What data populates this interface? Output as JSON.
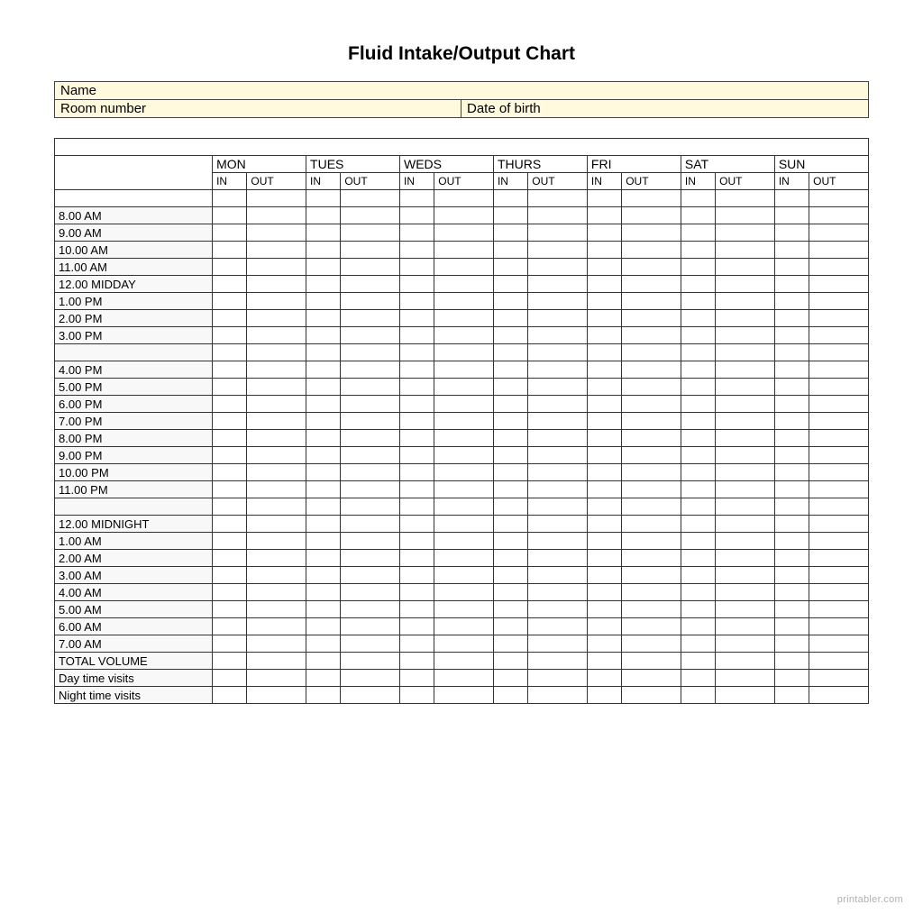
{
  "title": "Fluid Intake/Output Chart",
  "info": {
    "name_label": "Name",
    "room_label": "Room number",
    "dob_label": "Date of birth"
  },
  "days": [
    "MON",
    "TUES",
    "WEDS",
    "THURS",
    "FRI",
    "SAT",
    "SUN"
  ],
  "sub": {
    "in": "IN",
    "out": "OUT"
  },
  "times_block1": [
    "8.00 AM",
    "9.00 AM",
    "10.00 AM",
    "11.00 AM",
    "12.00 MIDDAY",
    "1.00 PM",
    "2.00 PM",
    "3.00 PM"
  ],
  "times_block2": [
    "4.00 PM",
    "5.00 PM",
    "6.00 PM",
    "7.00 PM",
    "8.00 PM",
    "9.00 PM",
    "10.00 PM",
    "11.00 PM"
  ],
  "times_block3_first": "12.00 MIDNIGHT",
  "times_block3_rest": [
    "1.00 AM",
    "2.00 AM",
    "3.00 AM",
    "4.00 AM",
    "5.00 AM",
    "6.00 AM",
    "7.00 AM"
  ],
  "summary": {
    "total_volume": "TOTAL VOLUME",
    "day_visits": "Day time visits",
    "night_visits": "Night time visits"
  },
  "footer": "printabler.com",
  "colors": {
    "info_bg": "#fff9dd",
    "border": "#333333",
    "time_bg": "#f8f8f8",
    "text": "#000000",
    "footer": "#b0b0b0",
    "page_bg": "#ffffff"
  }
}
